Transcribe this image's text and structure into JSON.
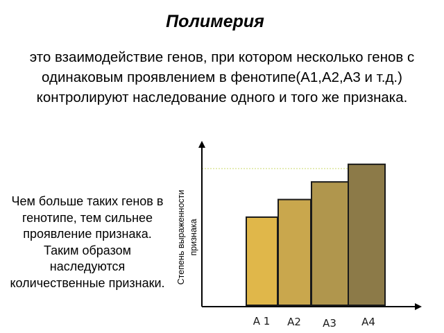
{
  "title": "Полимерия",
  "definition": "это   взаимодействие генов, при котором несколько генов с одинаковым проявлением  в фенотипе(А1,А2,А3 и т.д.) контролируют наследование одного  и того же признака.",
  "side_text": "Чем больше таких генов в генотипе, тем сильнее проявление признака. Таким образом наследуются количественные признаки.",
  "diagram": {
    "y_axis_label_line1": "Степень выраженности",
    "y_axis_label_line2": "признака",
    "bars": [
      {
        "label": "А 1",
        "level": 0.5,
        "color": "#e0b74a"
      },
      {
        "label": "А2",
        "level": 0.6,
        "color": "#c9a74d"
      },
      {
        "label": "А3",
        "level": 0.7,
        "color": "#b0964d"
      },
      {
        "label": "А4",
        "level": 0.8,
        "color": "#8c7a48"
      }
    ],
    "reference_line_color": "#c8d96a",
    "bar_outline_color": "#1a1a1a"
  }
}
